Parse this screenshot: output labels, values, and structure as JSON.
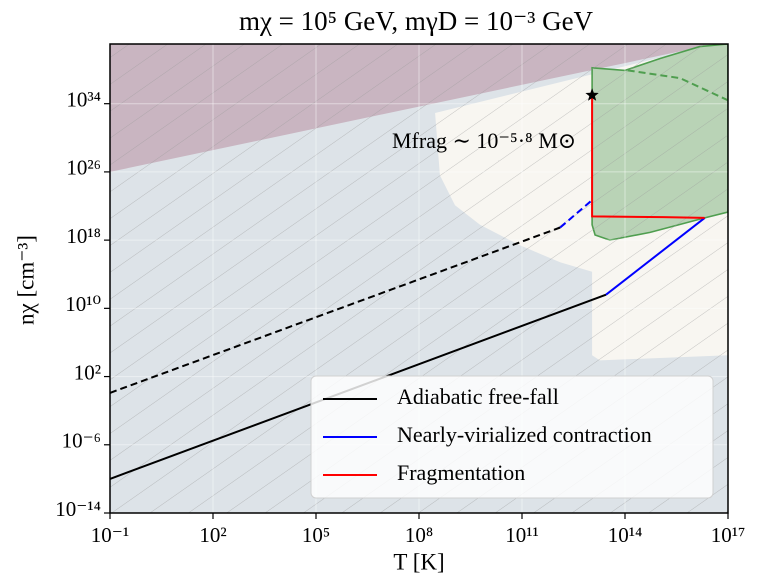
{
  "chart_data": {
    "type": "line",
    "title": "mχ = 10⁵ GeV, mγD = 10⁻³ GeV",
    "x_label": "T [K]",
    "y_label": "nχ [cm⁻³]",
    "annotation": "Mfrag ∼ 10⁻⁵·⁸ M⊙",
    "xscale": "log",
    "yscale": "log",
    "xlim": [
      0.1,
      1e+17
    ],
    "ylim": [
      1e-14,
      1e+41
    ],
    "xticks": [
      {
        "value": 0.1,
        "label": "10⁻¹"
      },
      {
        "value": 100.0,
        "label": "10²"
      },
      {
        "value": 100000.0,
        "label": "10⁵"
      },
      {
        "value": 100000000.0,
        "label": "10⁸"
      },
      {
        "value": 100000000000.0,
        "label": "10¹¹"
      },
      {
        "value": 100000000000000.0,
        "label": "10¹⁴"
      },
      {
        "value": 1e+17,
        "label": "10¹⁷"
      }
    ],
    "yticks": [
      {
        "value": 1e-14,
        "label": "10⁻¹⁴"
      },
      {
        "value": 1e-06,
        "label": "10⁻⁶"
      },
      {
        "value": 100.0,
        "label": "10²"
      },
      {
        "value": 10000000000.0,
        "label": "10¹⁰"
      },
      {
        "value": 1e+18,
        "label": "10¹⁸"
      },
      {
        "value": 1e+26,
        "label": "10²⁶"
      },
      {
        "value": 1e+34,
        "label": "10³⁴"
      }
    ],
    "grid": true,
    "facecolor": "#dde3e8",
    "legend_loc": "lower right",
    "regions": [
      {
        "color": "#f8f6f1",
        "x": [
          295000000.0,
          4.2e+16,
          1e+17,
          1e+17,
          18600000000000.0,
          11000000000000.0,
          11000000000000.0,
          1290000000000.0,
          87000000000.0,
          6000000000.0,
          1120000000.0,
          407000000.0
        ],
        "y": [
          8e+32,
          1e+41,
          1e+41,
          32000.0,
          7900.0,
          32000.0,
          200000000000000.0,
          2500000000000000.0,
          2.5e+17,
          6.3e+19,
          1.26e+22,
          3.98e+25
        ]
      },
      {
        "color": "#c9b5c1",
        "x": [
          0.1,
          0.1,
          4.2e+16
        ],
        "y": [
          1e+41,
          1e+26,
          1e+41
        ]
      },
      {
        "color": "#b9d3b6",
        "edge_color": "#4f9e4f",
        "x": [
          11000000000000.0,
          100000000000000.0,
          1050000000000000.0,
          1.5e+16,
          1e+17,
          1e+17,
          2.1e+16,
          540000000000000.0,
          36000000000000.0,
          13500000000000.0,
          11000000000000.0
        ],
        "y": [
          1.6e+38,
          8e+37,
          2e+39,
          5e+40,
          1e+41,
          2e+21,
          4e+20,
          8e+18,
          1e+18,
          4e+18,
          6.3e+19
        ]
      }
    ],
    "series": [
      {
        "name": "Adiabatic free-fall",
        "color": "#000000",
        "x": [
          0.1,
          28000000000000.0
        ],
        "values": [
          1e-10,
          400000000000.0
        ]
      },
      {
        "name": "Nearly-virialized contraction",
        "color": "#0000ff",
        "x": [
          28000000000000.0,
          2.1e+16
        ],
        "values": [
          400000000000.0,
          4e+20
        ]
      },
      {
        "name": "Fragmentation",
        "color": "#ff0000",
        "x": [
          11000000000000.0,
          11000000000000.0,
          1300000000000000.0,
          2.1e+16
        ],
        "values": [
          1e+35,
          6e+20,
          5e+20,
          4e+20
        ]
      },
      {
        "color": "#000000",
        "style": "dashed",
        "x": [
          0.1,
          1300000000000.0
        ],
        "values": [
          1.2,
          3e+19
        ]
      },
      {
        "color": "#0000ff",
        "style": "dashed",
        "x": [
          1300000000000.0,
          11000000000000.0
        ],
        "values": [
          3e+19,
          5e+22
        ]
      },
      {
        "color": "#4f9e4f",
        "style": "dashed",
        "x": [
          120000000000000.0,
          4000000000000000.0,
          1e+17
        ],
        "values": [
          8e+37,
          1e+37,
          2.5e+34
        ]
      },
      {
        "color": "#000000",
        "marker": "star",
        "x": [
          11000000000000.0
        ],
        "values": [
          1e+35
        ]
      }
    ]
  }
}
